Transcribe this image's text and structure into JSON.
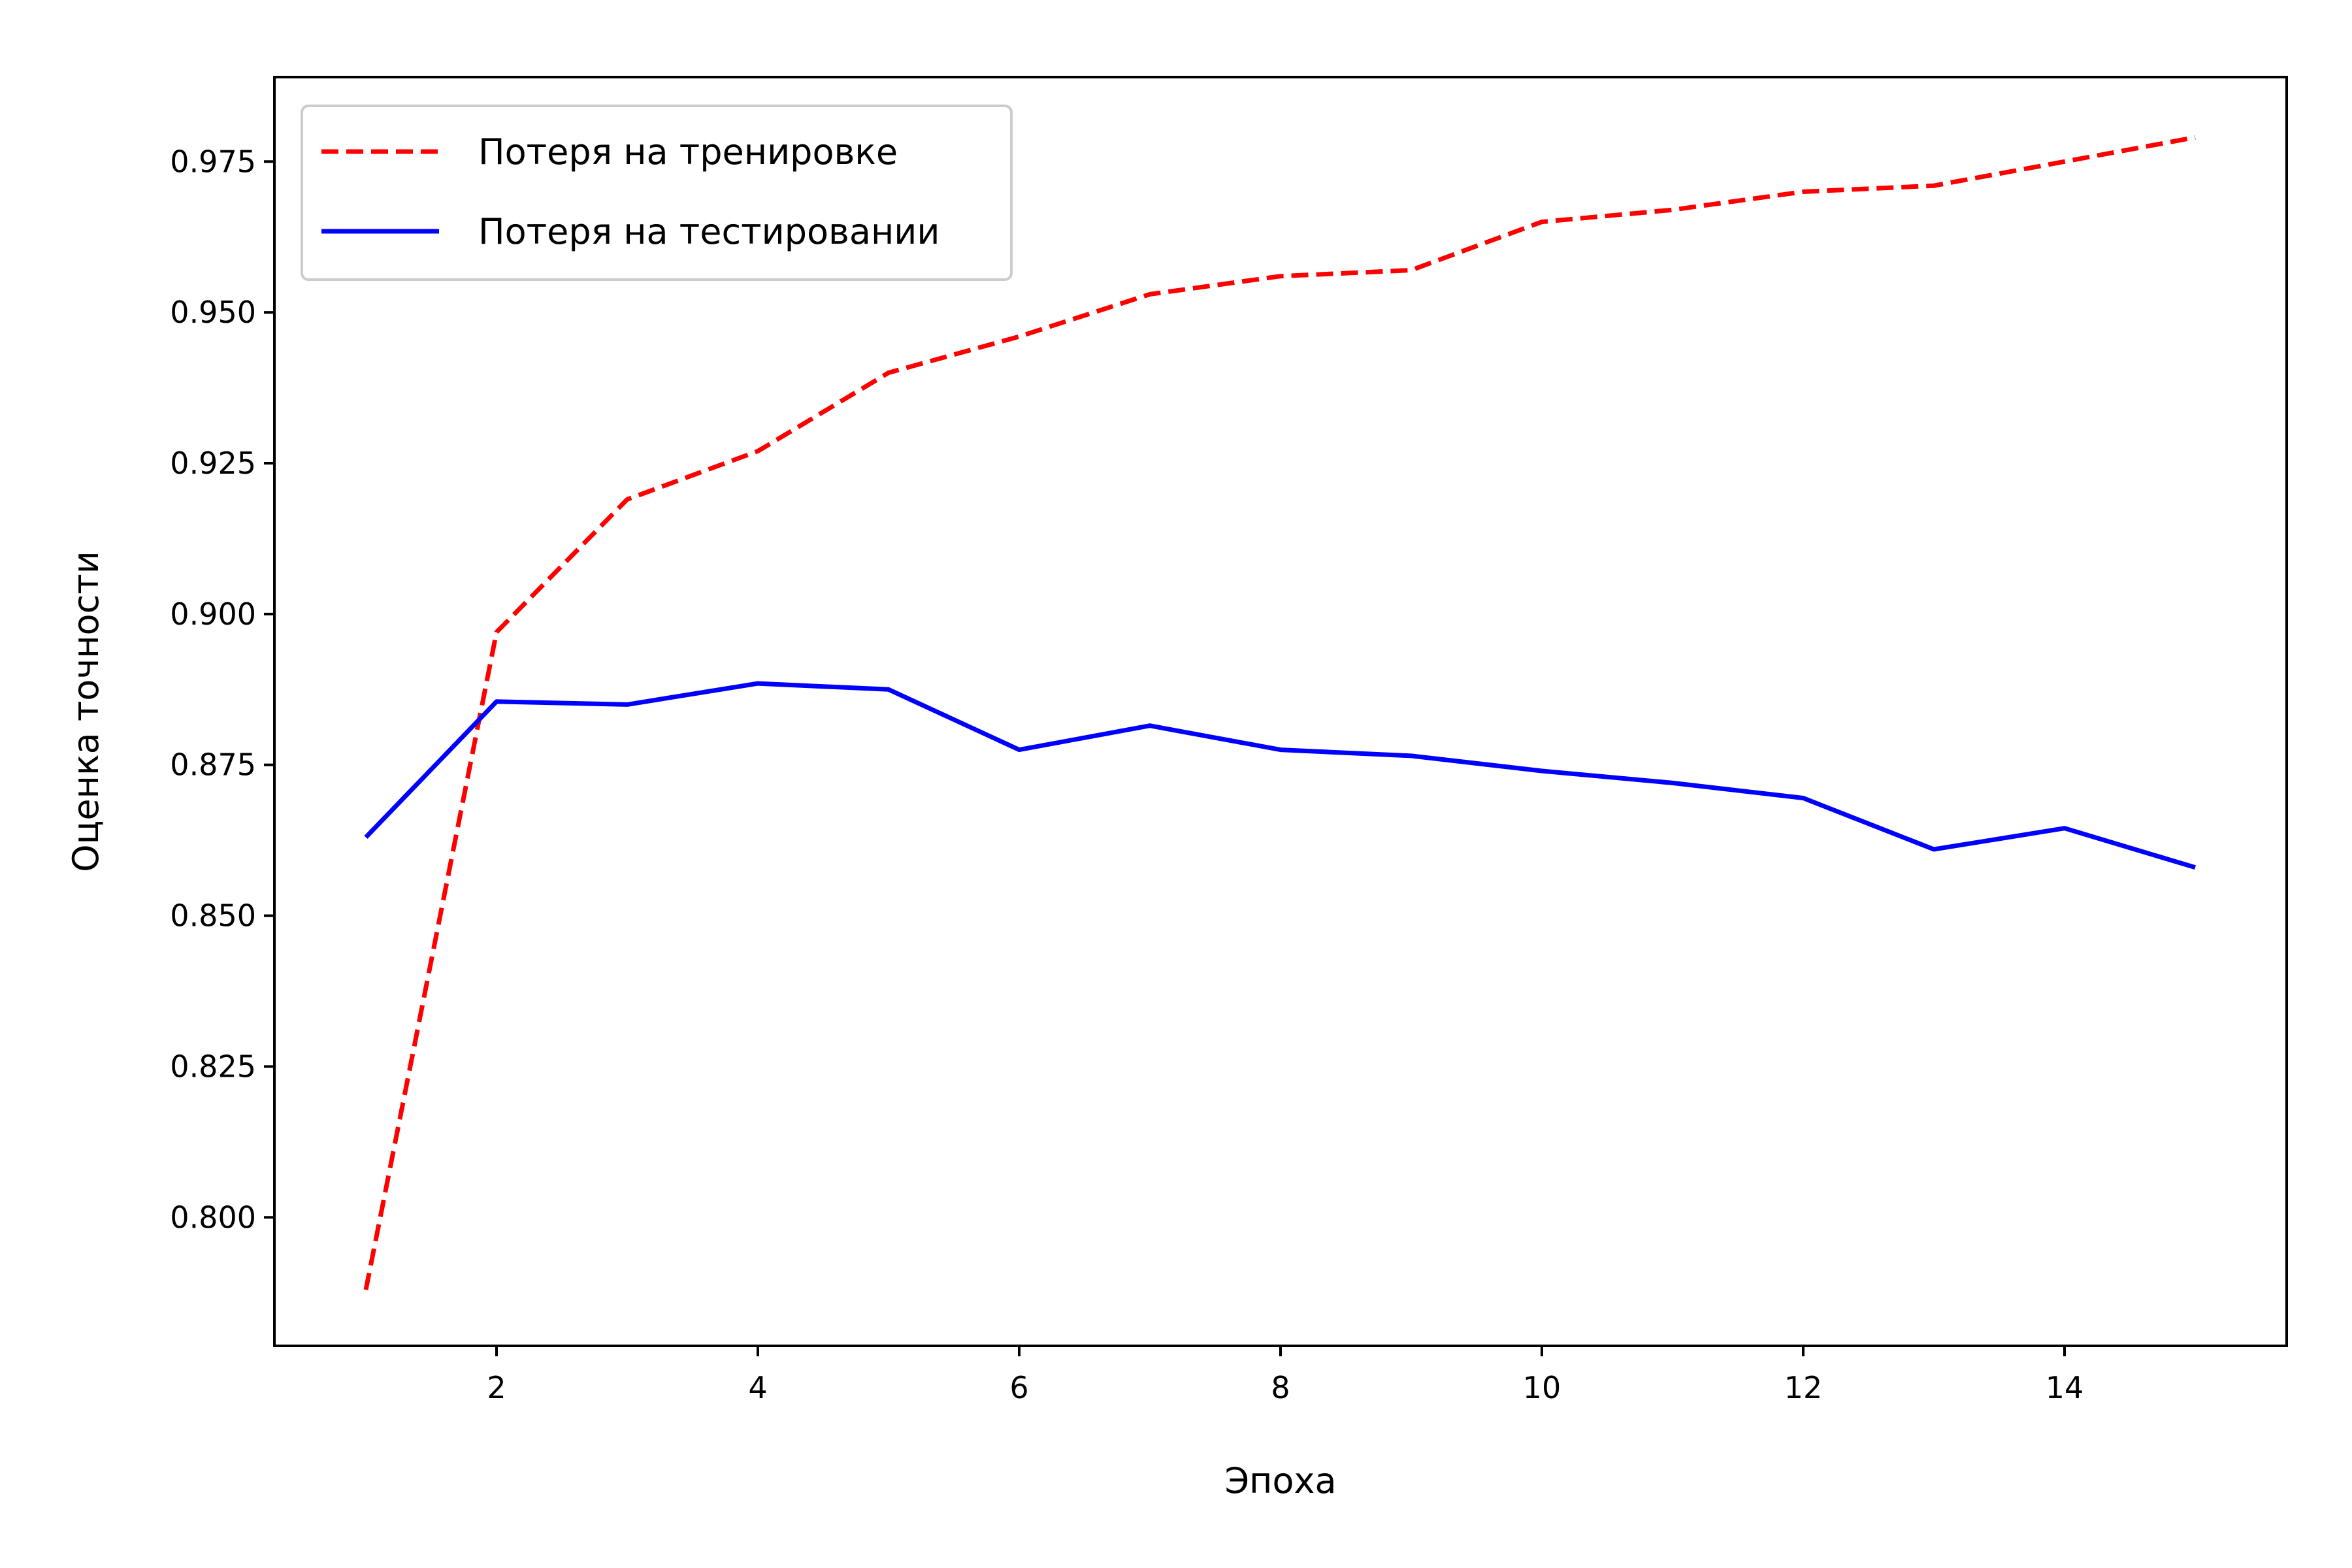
{
  "chart_data": {
    "type": "line",
    "title": "",
    "xlabel": "Эпоха",
    "ylabel": "Оценка точности",
    "x": [
      1,
      2,
      3,
      4,
      5,
      6,
      7,
      8,
      9,
      10,
      11,
      12,
      13,
      14,
      15
    ],
    "xlim": [
      0.3,
      15.7
    ],
    "ylim": [
      0.7787,
      0.989
    ],
    "x_ticks": [
      2,
      4,
      6,
      8,
      10,
      12,
      14
    ],
    "x_tick_labels": [
      "2",
      "4",
      "6",
      "8",
      "10",
      "12",
      "14"
    ],
    "y_ticks": [
      0.8,
      0.825,
      0.85,
      0.875,
      0.9,
      0.925,
      0.95,
      0.975
    ],
    "y_tick_labels": [
      "0.800",
      "0.825",
      "0.850",
      "0.875",
      "0.900",
      "0.925",
      "0.950",
      "0.975"
    ],
    "grid": false,
    "legend_position": "top-left",
    "series": [
      {
        "name": "Потеря на тренировке",
        "color": "#ff0000",
        "style": "dashed",
        "values": [
          0.788,
          0.897,
          0.919,
          0.927,
          0.94,
          0.946,
          0.953,
          0.956,
          0.957,
          0.965,
          0.967,
          0.97,
          0.971,
          0.975,
          0.979
        ]
      },
      {
        "name": "Потеря на тестировании",
        "color": "#0000ff",
        "style": "solid",
        "values": [
          0.863,
          0.8855,
          0.885,
          0.8885,
          0.8875,
          0.8775,
          0.8815,
          0.8775,
          0.8765,
          0.874,
          0.872,
          0.8695,
          0.861,
          0.8645,
          0.858
        ]
      }
    ]
  }
}
